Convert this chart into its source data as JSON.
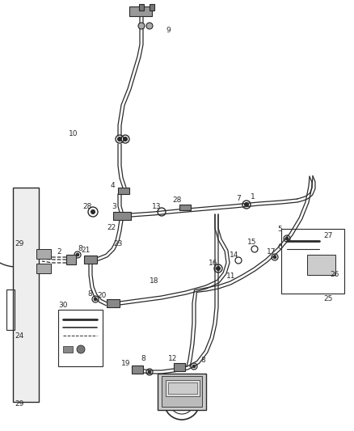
{
  "bg_color": "#ffffff",
  "line_color": "#2a2a2a",
  "label_color": "#2a2a2a",
  "fig_width": 4.38,
  "fig_height": 5.33,
  "dpi": 100,
  "lw_pipe": 1.4,
  "lw_thin": 0.9,
  "lw_dash": 0.8
}
